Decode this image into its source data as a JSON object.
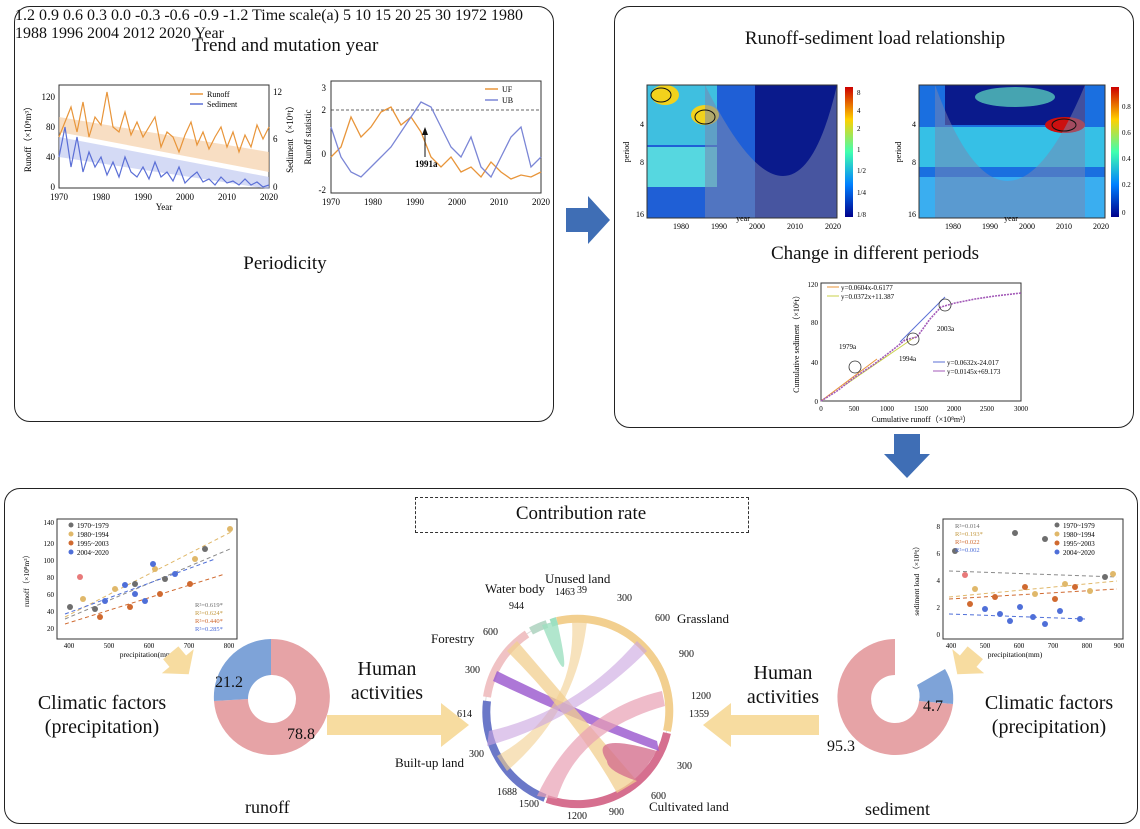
{
  "panels": {
    "trend": {
      "title": "Trend and mutation year",
      "left_chart": {
        "ylabel": "Runoff（×10⁸m³）",
        "y2label": "Sediment（×10⁶t）",
        "xlabel": "Year",
        "legend": [
          "Runoff",
          "Sediment"
        ],
        "yticks": [
          "0",
          "20",
          "40",
          "60",
          "80",
          "100",
          "120"
        ],
        "y2ticks": [
          "0",
          "2",
          "4",
          "6",
          "8",
          "10",
          "12"
        ],
        "xticks": [
          "1970",
          "1980",
          "1990",
          "2000",
          "2010",
          "2020"
        ]
      },
      "right_chart": {
        "ylabel": "Runoff statistic",
        "legend": [
          "UF",
          "UB"
        ],
        "annotation": "1991a",
        "yticks": [
          "-2",
          "-1",
          "0",
          "1",
          "2",
          "3"
        ],
        "xticks": [
          "1970",
          "1980",
          "1990",
          "2000",
          "2010",
          "2020"
        ]
      }
    },
    "periodicity": {
      "title": "Periodicity",
      "ylabel": "Time scale(a)",
      "xlabel": "Year",
      "yticks": [
        "5",
        "10",
        "15",
        "20",
        "25",
        "30"
      ],
      "xticks": [
        "1972",
        "1980",
        "1988",
        "1996",
        "2004",
        "2012",
        "2020"
      ],
      "colorbar": [
        "1.2",
        "0.9",
        "0.6",
        "0.3",
        "0.0",
        "-0.3",
        "-0.6",
        "-0.9",
        "-1.2"
      ]
    },
    "relationship": {
      "title": "Runoff-sediment load relationship",
      "ylabel": "period",
      "xlabel": "year",
      "yticks": [
        "4",
        "8",
        "16"
      ],
      "xticks": [
        "1980",
        "1990",
        "2000",
        "2010",
        "2020"
      ],
      "colorbar_left": [
        "8",
        "4",
        "2",
        "1",
        "1/2",
        "1/4",
        "1/8"
      ],
      "colorbar_right": [
        "0.8",
        "0.6",
        "0.4",
        "0.2",
        "0"
      ]
    },
    "change": {
      "title": "Change in different periods",
      "ylabel": "Cumulative sediment（×10⁶t）",
      "xlabel": "Cumulative runoff（×10⁸m³）",
      "equations": [
        "y=0.0604x-0.6177",
        "y=0.0372x+11.387",
        "y=0.0632x-24.017",
        "y=0.0145x+69.173"
      ],
      "annotations": [
        "1979a",
        "1994a",
        "2003a"
      ],
      "yticks": [
        "0",
        "20",
        "40",
        "60",
        "80",
        "100",
        "120"
      ],
      "xticks": [
        "0",
        "500",
        "1000",
        "1500",
        "2000",
        "2500",
        "3000"
      ]
    },
    "contribution": {
      "title": "Contribution rate",
      "runoff_scatter": {
        "ylabel": "runoff（×10⁸m³）",
        "xlabel": "precipitation(mm)",
        "legend": [
          "1970~1979",
          "1980~1994",
          "1995~2003",
          "2004~2020"
        ],
        "r2": [
          "R²=0.619*",
          "R²=0.624*",
          "R²=0.440*",
          "R²=0.285*"
        ],
        "yticks": [
          "20",
          "40",
          "60",
          "80",
          "100",
          "120",
          "140"
        ],
        "xticks": [
          "400",
          "500",
          "600",
          "700",
          "800"
        ]
      },
      "sediment_scatter": {
        "ylabel": "sediment load（×10⁶t）",
        "xlabel": "precipitation(mm)",
        "legend": [
          "1970~1979",
          "1980~1994",
          "1995~2003",
          "2004~2020"
        ],
        "r2": [
          "R²=0.014",
          "R²=0.193*",
          "R²=0.022",
          "R²=0.002"
        ],
        "yticks": [
          "0",
          "2",
          "4",
          "6",
          "8"
        ],
        "xticks": [
          "400",
          "500",
          "600",
          "700",
          "800",
          "900"
        ]
      },
      "runoff_donut": {
        "caption": "runoff",
        "human": "78.8",
        "climate": "21.2"
      },
      "sediment_donut": {
        "caption": "sediment",
        "human": "95.3",
        "climate": "4.7"
      },
      "climatic_label": "Climatic factors (precipitation)",
      "human_label": "Human activities",
      "chord": {
        "categories": [
          "Water body",
          "Unused land",
          "Grassland",
          "Cultivated land",
          "Built-up land",
          "Forestry"
        ],
        "ticks": [
          "944",
          "1463",
          "39",
          "300",
          "600",
          "900",
          "1200",
          "1359",
          "300",
          "600",
          "900",
          "1200",
          "1500",
          "1688",
          "300",
          "614",
          "300",
          "600"
        ]
      }
    }
  },
  "colors": {
    "runoff": "#e8953a",
    "sediment": "#5b6fd6",
    "arrow_blue": "#3f6eb5",
    "donut_red": "#e6a3a6",
    "donut_blue": "#7ea3d8",
    "arrow_yellow": "#f7dca0"
  },
  "chart_data": [
    {
      "type": "line",
      "title": "Trend and mutation year",
      "series": [
        {
          "name": "Runoff",
          "x": [
            1970,
            1975,
            1980,
            1985,
            1990,
            1995,
            2000,
            2005,
            2010,
            2015,
            2020
          ],
          "values": [
            55,
            90,
            70,
            120,
            60,
            55,
            45,
            50,
            40,
            55,
            55
          ]
        },
        {
          "name": "Sediment",
          "x": [
            1970,
            1975,
            1980,
            1985,
            1990,
            1995,
            2000,
            2005,
            2010,
            2015,
            2020
          ],
          "values": [
            8,
            6,
            4,
            5,
            2.5,
            3,
            1.5,
            1.5,
            1,
            0.8,
            0.5
          ]
        }
      ]
    },
    {
      "type": "line",
      "series": [
        {
          "name": "UF",
          "x": [
            1970,
            1975,
            1980,
            1985,
            1990,
            1995,
            2000,
            2005,
            2010,
            2015,
            2020
          ],
          "values": [
            -0.5,
            1.5,
            0.8,
            2.1,
            0.6,
            1.0,
            -1.2,
            -1.5,
            -1.0,
            -1.3,
            -0.9
          ]
        },
        {
          "name": "UB",
          "x": [
            1970,
            1975,
            1980,
            1985,
            1990,
            1995,
            2000,
            2005,
            2010,
            2015,
            2020
          ],
          "values": [
            1.0,
            -0.5,
            -1.3,
            0.2,
            1.5,
            2.5,
            1.2,
            0.5,
            -0.8,
            1.6,
            0.0
          ]
        }
      ]
    },
    {
      "type": "line",
      "title": "Change in different periods",
      "series": [
        {
          "name": "cumulative",
          "x": [
            0,
            300,
            500,
            800,
            1000,
            1300,
            1500,
            1800,
            2000,
            2300,
            2600,
            3000
          ],
          "values": [
            0,
            18,
            30,
            47,
            57,
            64,
            68,
            88,
            97,
            101,
            104,
            108
          ]
        }
      ]
    }
  ]
}
